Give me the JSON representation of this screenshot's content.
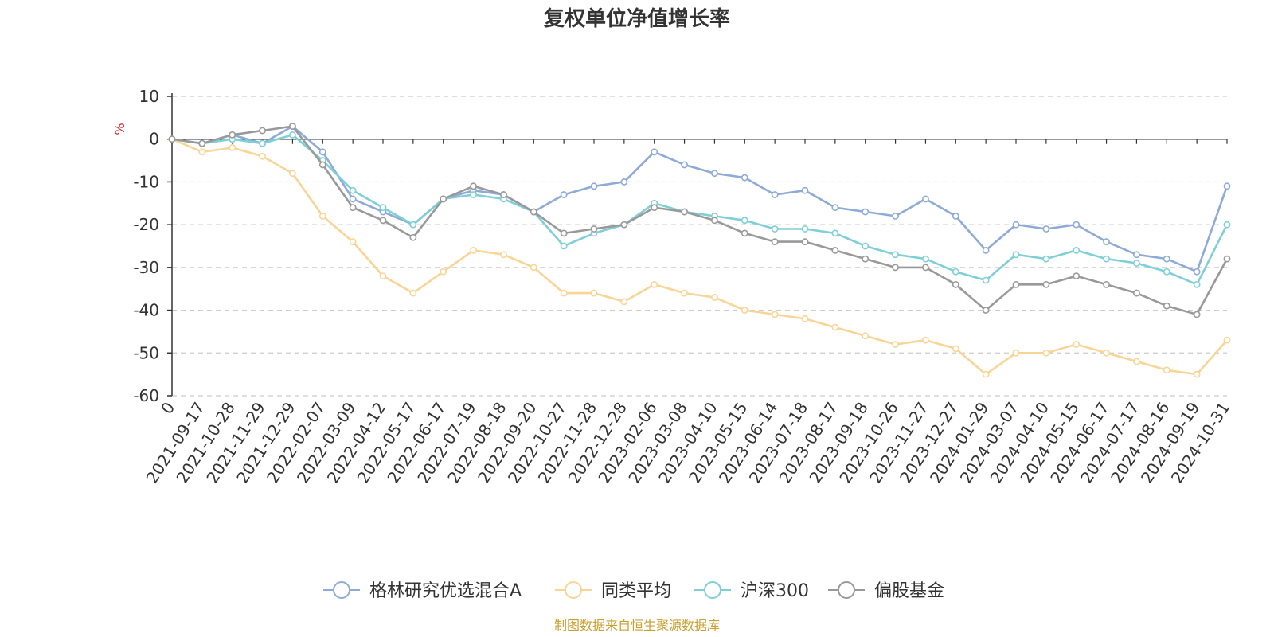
{
  "chart_data": {
    "type": "line",
    "title": "复权单位净值增长率",
    "ylabel": "%",
    "ylim": [
      -60,
      10
    ],
    "yticks": [
      "10",
      "0",
      "-10",
      "-20",
      "-30",
      "-40",
      "-50",
      "-60"
    ],
    "categories": [
      "0",
      "2021-09-17",
      "2021-10-28",
      "2021-11-29",
      "2021-12-29",
      "2022-02-07",
      "2022-03-09",
      "2022-04-12",
      "2022-05-17",
      "2022-06-17",
      "2022-07-19",
      "2022-08-18",
      "2022-09-20",
      "2022-10-27",
      "2022-11-28",
      "2022-12-28",
      "2023-02-06",
      "2023-03-08",
      "2023-04-10",
      "2023-05-15",
      "2023-06-14",
      "2023-07-18",
      "2023-08-17",
      "2023-09-18",
      "2023-10-26",
      "2023-11-27",
      "2023-12-27",
      "2024-01-29",
      "2024-03-07",
      "2024-04-10",
      "2024-05-15",
      "2024-06-17",
      "2024-07-17",
      "2024-08-16",
      "2024-09-19",
      "2024-10-31"
    ],
    "legend_position": "bottom-center",
    "grid": "dashed horizontal",
    "series": [
      {
        "name": "格林研究优选混合A",
        "color": "#8eaad6",
        "values": [
          0,
          -1,
          1,
          -1,
          3,
          -3,
          -14,
          -17,
          -20,
          -14,
          -12,
          -13,
          -17,
          -13,
          -11,
          -10,
          -3,
          -6,
          -8,
          -9,
          -13,
          -12,
          -16,
          -17,
          -18,
          -14,
          -18,
          -26,
          -20,
          -21,
          -20,
          -24,
          -27,
          -28,
          -31,
          -11
        ]
      },
      {
        "name": "同类平均",
        "color": "#f9d595",
        "values": [
          0,
          -3,
          -2,
          -4,
          -8,
          -18,
          -24,
          -32,
          -36,
          -31,
          -26,
          -27,
          -30,
          -36,
          -36,
          -38,
          -34,
          -36,
          -37,
          -40,
          -41,
          -42,
          -44,
          -46,
          -48,
          -47,
          -49,
          -55,
          -50,
          -50,
          -48,
          -50,
          -52,
          -54,
          -55,
          -47
        ]
      },
      {
        "name": "沪深300",
        "color": "#7fd0d6",
        "values": [
          0,
          -1,
          0,
          -1,
          1,
          -5,
          -12,
          -16,
          -20,
          -14,
          -13,
          -14,
          -17,
          -25,
          -22,
          -20,
          -15,
          -17,
          -18,
          -19,
          -21,
          -21,
          -22,
          -25,
          -27,
          -28,
          -31,
          -33,
          -27,
          -28,
          -26,
          -28,
          -29,
          -31,
          -34,
          -20
        ]
      },
      {
        "name": "偏股基金",
        "color": "#999999",
        "values": [
          0,
          -1,
          1,
          2,
          3,
          -6,
          -16,
          -19,
          -23,
          -14,
          -11,
          -13,
          -17,
          -22,
          -21,
          -20,
          -16,
          -17,
          -19,
          -22,
          -24,
          -24,
          -26,
          -28,
          -30,
          -30,
          -34,
          -40,
          -34,
          -34,
          -32,
          -34,
          -36,
          -39,
          -41,
          -28
        ]
      }
    ]
  },
  "legend": {
    "items": [
      "格林研究优选混合A",
      "同类平均",
      "沪深300",
      "偏股基金"
    ]
  },
  "source": "制图数据来自恒生聚源数据库"
}
